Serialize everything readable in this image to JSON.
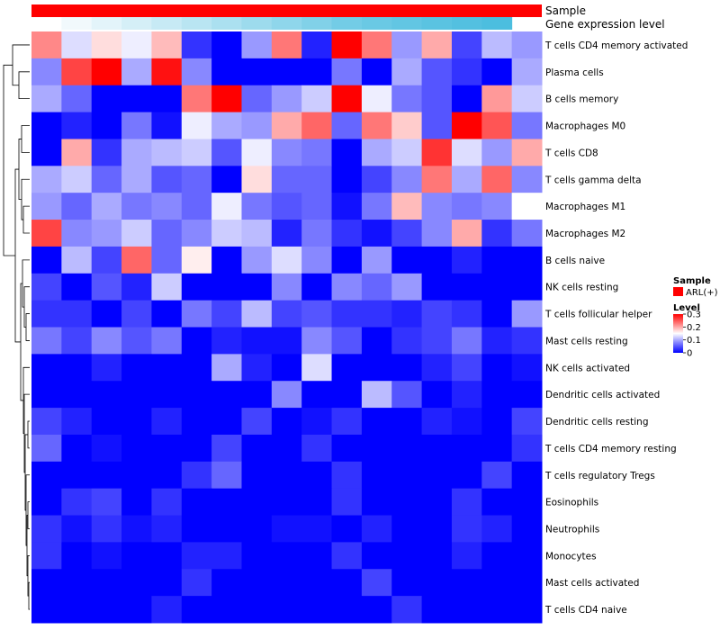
{
  "chart_data": {
    "type": "heatmap",
    "title": "",
    "column_annotations": [
      {
        "name": "Sample",
        "label": "Sample",
        "color": "#ff0000"
      },
      {
        "name": "Gene expression level",
        "label": "Gene expression level",
        "colors": [
          "#ffffff",
          "#f1f9fc",
          "#e3f4fa",
          "#d5eff7",
          "#c7eaf5",
          "#b9e5f2",
          "#abe0f0",
          "#9ddbed",
          "#8fd6eb",
          "#81d1e8",
          "#73cce6",
          "#6ac9e4",
          "#62c6e3",
          "#5ac3e1",
          "#53c0e0",
          "#4cbedf"
        ]
      }
    ],
    "rows": [
      "T cells CD4 memory activated",
      "Plasma cells",
      "B cells memory",
      "Macrophages M0",
      "T cells CD8",
      "T cells gamma delta",
      "Macrophages M1",
      "Macrophages M2",
      "B cells naive",
      "NK cells resting",
      "T cells follicular helper",
      "Mast cells resting",
      "NK cells activated",
      "Dendritic cells activated",
      "Dendritic cells resting",
      "T cells CD4 memory resting",
      "T cells regulatory  Tregs",
      "Eosinophils",
      "Neutrophils",
      "Monocytes",
      "Mast cells activated",
      "T cells CD4 naive"
    ],
    "values": [
      [
        0.22,
        0.13,
        0.17,
        0.14,
        0.19,
        0.03,
        0.0,
        0.09,
        0.23,
        0.02,
        0.3,
        0.23,
        0.09,
        0.2,
        0.04,
        0.11,
        0.09
      ],
      [
        0.08,
        0.26,
        0.3,
        0.1,
        0.29,
        0.08,
        0.0,
        0.0,
        0.0,
        0.0,
        0.07,
        0.0,
        0.1,
        0.05,
        0.03,
        0.0,
        0.1
      ],
      [
        0.1,
        0.06,
        0.0,
        0.0,
        0.0,
        0.23,
        0.3,
        0.06,
        0.09,
        0.12,
        0.3,
        0.14,
        0.07,
        0.05,
        0.0,
        0.21,
        0.12
      ],
      [
        0.0,
        0.02,
        0.0,
        0.07,
        0.01,
        0.14,
        0.1,
        0.09,
        0.2,
        0.24,
        0.06,
        0.23,
        0.18,
        0.05,
        0.3,
        0.25,
        0.07
      ],
      [
        0.0,
        0.2,
        0.03,
        0.1,
        0.11,
        0.12,
        0.05,
        0.14,
        0.08,
        0.07,
        0.0,
        0.1,
        0.12,
        0.27,
        0.13,
        0.09,
        0.2
      ],
      [
        0.1,
        0.12,
        0.06,
        0.1,
        0.05,
        0.06,
        0.0,
        0.17,
        0.06,
        0.06,
        0.0,
        0.04,
        0.08,
        0.23,
        0.1,
        0.24,
        0.08
      ],
      [
        0.09,
        0.06,
        0.1,
        0.07,
        0.08,
        0.06,
        0.14,
        0.07,
        0.05,
        0.06,
        0.01,
        0.07,
        0.19,
        0.08,
        0.07,
        0.08,
        0.15
      ],
      [
        0.26,
        0.08,
        0.09,
        0.12,
        0.06,
        0.08,
        0.12,
        0.11,
        0.02,
        0.07,
        0.03,
        0.01,
        0.04,
        0.08,
        0.2,
        0.03,
        0.07
      ],
      [
        0.0,
        0.11,
        0.04,
        0.24,
        0.06,
        0.16,
        0.0,
        0.09,
        0.13,
        0.08,
        0.0,
        0.09,
        0.0,
        0.0,
        0.02,
        0.0,
        0.0
      ],
      [
        0.04,
        0.0,
        0.05,
        0.02,
        0.12,
        0.0,
        0.0,
        0.0,
        0.08,
        0.0,
        0.08,
        0.06,
        0.09,
        0.0,
        0.0,
        0.0,
        0.0
      ],
      [
        0.03,
        0.03,
        0.0,
        0.04,
        0.0,
        0.07,
        0.04,
        0.11,
        0.04,
        0.05,
        0.03,
        0.03,
        0.02,
        0.04,
        0.03,
        0.0,
        0.09
      ],
      [
        0.07,
        0.04,
        0.08,
        0.05,
        0.07,
        0.0,
        0.02,
        0.01,
        0.01,
        0.08,
        0.05,
        0.0,
        0.03,
        0.04,
        0.07,
        0.02,
        0.03
      ],
      [
        0.0,
        0.0,
        0.02,
        0.0,
        0.0,
        0.0,
        0.1,
        0.02,
        0.0,
        0.13,
        0.0,
        0.0,
        0.0,
        0.02,
        0.04,
        0.0,
        0.01
      ],
      [
        0.0,
        0.0,
        0.0,
        0.0,
        0.0,
        0.0,
        0.0,
        0.0,
        0.08,
        0.0,
        0.0,
        0.11,
        0.05,
        0.0,
        0.02,
        0.0,
        0.0
      ],
      [
        0.04,
        0.02,
        0.0,
        0.0,
        0.02,
        0.0,
        0.0,
        0.04,
        0.0,
        0.01,
        0.03,
        0.0,
        0.0,
        0.02,
        0.01,
        0.0,
        0.04
      ],
      [
        0.06,
        0.0,
        0.01,
        0.0,
        0.0,
        0.0,
        0.04,
        0.0,
        0.0,
        0.03,
        0.0,
        0.0,
        0.0,
        0.0,
        0.0,
        0.0,
        0.03
      ],
      [
        0.0,
        0.0,
        0.0,
        0.0,
        0.0,
        0.03,
        0.06,
        0.0,
        0.0,
        0.0,
        0.03,
        0.0,
        0.0,
        0.0,
        0.0,
        0.04,
        0.0
      ],
      [
        0.0,
        0.03,
        0.04,
        0.0,
        0.03,
        0.0,
        0.0,
        0.0,
        0.0,
        0.0,
        0.03,
        0.0,
        0.0,
        0.0,
        0.03,
        0.0,
        0.0
      ],
      [
        0.03,
        0.01,
        0.03,
        0.01,
        0.02,
        0.0,
        0.0,
        0.0,
        0.01,
        0.01,
        0.0,
        0.02,
        0.0,
        0.0,
        0.03,
        0.02,
        0.0
      ],
      [
        0.03,
        0.0,
        0.01,
        0.0,
        0.0,
        0.02,
        0.02,
        0.0,
        0.0,
        0.0,
        0.03,
        0.0,
        0.0,
        0.0,
        0.02,
        0.0,
        0.0
      ],
      [
        0.0,
        0.0,
        0.0,
        0.0,
        0.0,
        0.03,
        0.0,
        0.0,
        0.0,
        0.0,
        0.0,
        0.04,
        0.0,
        0.0,
        0.0,
        0.0,
        0.0
      ],
      [
        0.0,
        0.0,
        0.0,
        0.0,
        0.02,
        0.0,
        0.0,
        0.0,
        0.0,
        0.0,
        0.0,
        0.0,
        0.03,
        0.0,
        0.0,
        0.0,
        0.0
      ]
    ],
    "color_scale": {
      "stops": [
        {
          "value": 0.0,
          "color": "#0000ff"
        },
        {
          "value": 0.15,
          "color": "#ffffff"
        },
        {
          "value": 0.3,
          "color": "#ff0000"
        }
      ],
      "range": [
        0,
        0.3
      ]
    },
    "legend": {
      "sample_title": "Sample",
      "sample_entry": "ARL(+)",
      "sample_color": "#ff0000",
      "level_title": "Level",
      "level_ticks": [
        "0.3",
        "0.2",
        "0.1",
        "0"
      ],
      "level_tick_values": [
        0.3,
        0.2,
        0.1,
        0.0
      ],
      "placement": "right"
    },
    "dendrogram": "rows"
  }
}
